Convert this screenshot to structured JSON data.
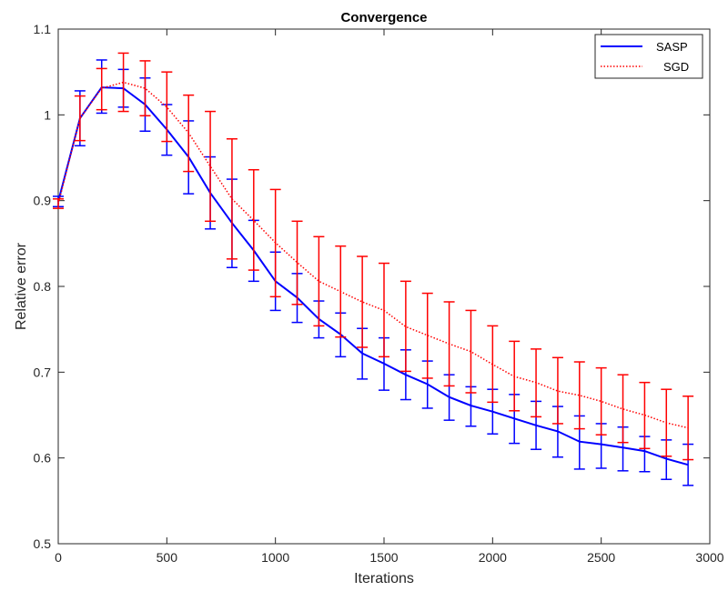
{
  "chart_data": {
    "type": "line",
    "title": "Convergence",
    "xlabel": "Iterations",
    "ylabel": "Relative error",
    "xlim": [
      0,
      3000
    ],
    "ylim": [
      0.5,
      1.1
    ],
    "xticks": [
      0,
      500,
      1000,
      1500,
      2000,
      2500,
      3000
    ],
    "xtick_labels": [
      "0",
      "500",
      "1000",
      "1500",
      "2000",
      "2500",
      "3000"
    ],
    "yticks": [
      0.5,
      0.6,
      0.7,
      0.8,
      0.9,
      1.0,
      1.1
    ],
    "ytick_labels": [
      "0.5",
      "0.6",
      "0.7",
      "0.8",
      "0.9",
      "1",
      "1.1"
    ],
    "grid": false,
    "legend_position": "top-right",
    "x": [
      0,
      100,
      200,
      300,
      400,
      500,
      600,
      700,
      800,
      900,
      1000,
      1100,
      1200,
      1300,
      1400,
      1500,
      1600,
      1700,
      1800,
      1900,
      2000,
      2100,
      2200,
      2300,
      2400,
      2500,
      2600,
      2700,
      2800,
      2900
    ],
    "series": [
      {
        "name": "SASP",
        "color": "#0000ff",
        "line_style": "solid",
        "values": [
          0.899,
          0.996,
          1.032,
          1.031,
          1.012,
          0.983,
          0.951,
          0.909,
          0.874,
          0.842,
          0.806,
          0.787,
          0.762,
          0.744,
          0.722,
          0.71,
          0.697,
          0.686,
          0.671,
          0.661,
          0.654,
          0.646,
          0.638,
          0.631,
          0.619,
          0.616,
          0.612,
          0.608,
          0.599,
          0.592
        ],
        "err_low": [
          0.893,
          0.964,
          1.002,
          1.009,
          0.981,
          0.953,
          0.908,
          0.867,
          0.822,
          0.806,
          0.772,
          0.758,
          0.74,
          0.718,
          0.692,
          0.679,
          0.668,
          0.658,
          0.644,
          0.637,
          0.628,
          0.617,
          0.61,
          0.601,
          0.587,
          0.588,
          0.585,
          0.584,
          0.575,
          0.568
        ],
        "err_high": [
          0.905,
          1.028,
          1.064,
          1.053,
          1.043,
          1.012,
          0.993,
          0.951,
          0.925,
          0.877,
          0.84,
          0.815,
          0.783,
          0.769,
          0.751,
          0.74,
          0.726,
          0.713,
          0.697,
          0.683,
          0.68,
          0.674,
          0.666,
          0.66,
          0.649,
          0.64,
          0.636,
          0.625,
          0.621,
          0.616
        ]
      },
      {
        "name": "SGD",
        "color": "#ff0000",
        "line_style": "dotted",
        "values": [
          0.896,
          0.996,
          1.031,
          1.038,
          1.031,
          1.009,
          0.979,
          0.94,
          0.902,
          0.877,
          0.851,
          0.828,
          0.806,
          0.794,
          0.782,
          0.772,
          0.753,
          0.743,
          0.733,
          0.724,
          0.709,
          0.695,
          0.688,
          0.678,
          0.673,
          0.666,
          0.657,
          0.65,
          0.641,
          0.635
        ],
        "err_low": [
          0.891,
          0.97,
          1.006,
          1.004,
          0.999,
          0.969,
          0.934,
          0.876,
          0.832,
          0.819,
          0.788,
          0.779,
          0.754,
          0.741,
          0.729,
          0.718,
          0.701,
          0.693,
          0.684,
          0.676,
          0.665,
          0.655,
          0.648,
          0.64,
          0.634,
          0.627,
          0.618,
          0.611,
          0.602,
          0.598
        ],
        "err_high": [
          0.902,
          1.022,
          1.054,
          1.072,
          1.063,
          1.05,
          1.023,
          1.004,
          0.972,
          0.936,
          0.913,
          0.876,
          0.858,
          0.847,
          0.835,
          0.827,
          0.806,
          0.792,
          0.782,
          0.772,
          0.754,
          0.736,
          0.727,
          0.717,
          0.712,
          0.705,
          0.697,
          0.688,
          0.68,
          0.672
        ]
      }
    ]
  }
}
